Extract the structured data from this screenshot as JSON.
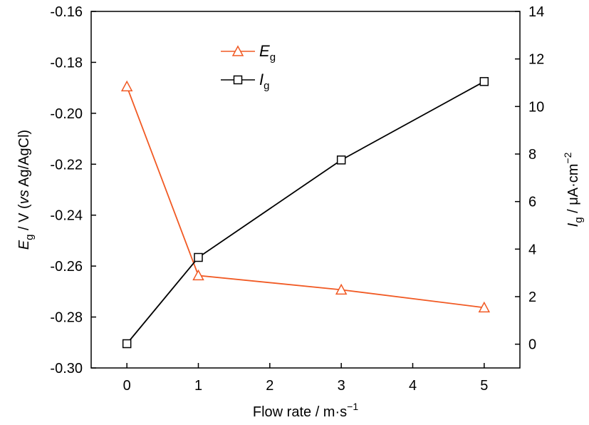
{
  "chart_data": {
    "type": "line",
    "x": [
      0,
      1,
      3,
      5
    ],
    "x_ticks": [
      "0",
      "1",
      "2",
      "3",
      "4",
      "5"
    ],
    "xlim": [
      -0.5,
      5.5
    ],
    "xlabel": "Flow rate / m·s",
    "xlabel_sup": "−1",
    "y_left": {
      "lim": [
        -0.3,
        -0.16
      ],
      "ticks": [
        "-0.16",
        "-0.18",
        "-0.20",
        "-0.22",
        "-0.24",
        "-0.26",
        "-0.28",
        "-0.30"
      ],
      "label_main": "E",
      "label_sub": "g",
      "label_rest": " / V (",
      "label_italic": "vs",
      "label_tail": " Ag/AgCl)"
    },
    "y_right": {
      "lim": [
        -1,
        14
      ],
      "ticks": [
        "0",
        "2",
        "4",
        "6",
        "8",
        "10",
        "12",
        "14"
      ],
      "label_main": "I",
      "label_sub": "g",
      "label_rest": " / μA·cm",
      "label_sup": "−2"
    },
    "series": [
      {
        "name": "E",
        "name_sub": "g",
        "axis": "left",
        "marker": "triangle",
        "color": "#f15a24",
        "values": [
          -0.1895,
          -0.2637,
          -0.2693,
          -0.2763
        ]
      },
      {
        "name": "I",
        "name_sub": "g",
        "axis": "right",
        "marker": "square",
        "color": "#000000",
        "values": [
          0.02,
          3.65,
          7.75,
          11.05
        ]
      }
    ],
    "legend_position": "top-left",
    "grid": false
  }
}
